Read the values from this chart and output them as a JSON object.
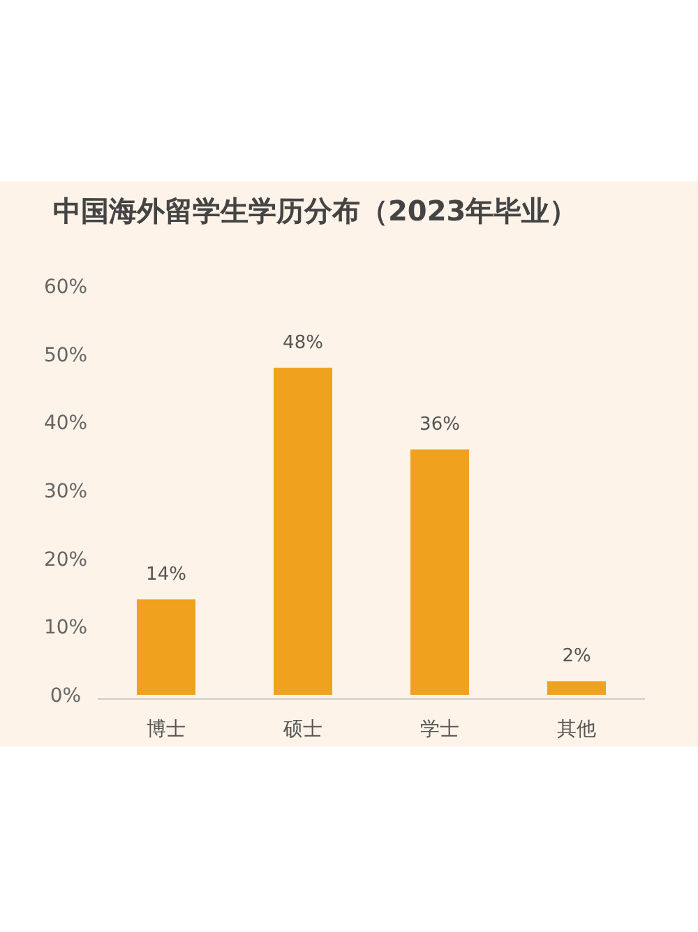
{
  "chart_data": {
    "type": "bar",
    "title": "中国海外留学生学历分布（2023年毕业）",
    "categories": [
      "博士",
      "硕士",
      "学士",
      "其他"
    ],
    "values": [
      14,
      48,
      36,
      2
    ],
    "value_labels": [
      "14%",
      "48%",
      "36%",
      "2%"
    ],
    "color": "#f0a11e",
    "ylim": [
      0,
      60
    ],
    "yticks": [
      {
        "value": 0,
        "label": "0%"
      },
      {
        "value": 10,
        "label": "10%"
      },
      {
        "value": 20,
        "label": "20%"
      },
      {
        "value": 30,
        "label": "30%"
      },
      {
        "value": 40,
        "label": "40%"
      },
      {
        "value": 50,
        "label": "50%"
      },
      {
        "value": 60,
        "label": "60%"
      }
    ],
    "grid": false
  }
}
